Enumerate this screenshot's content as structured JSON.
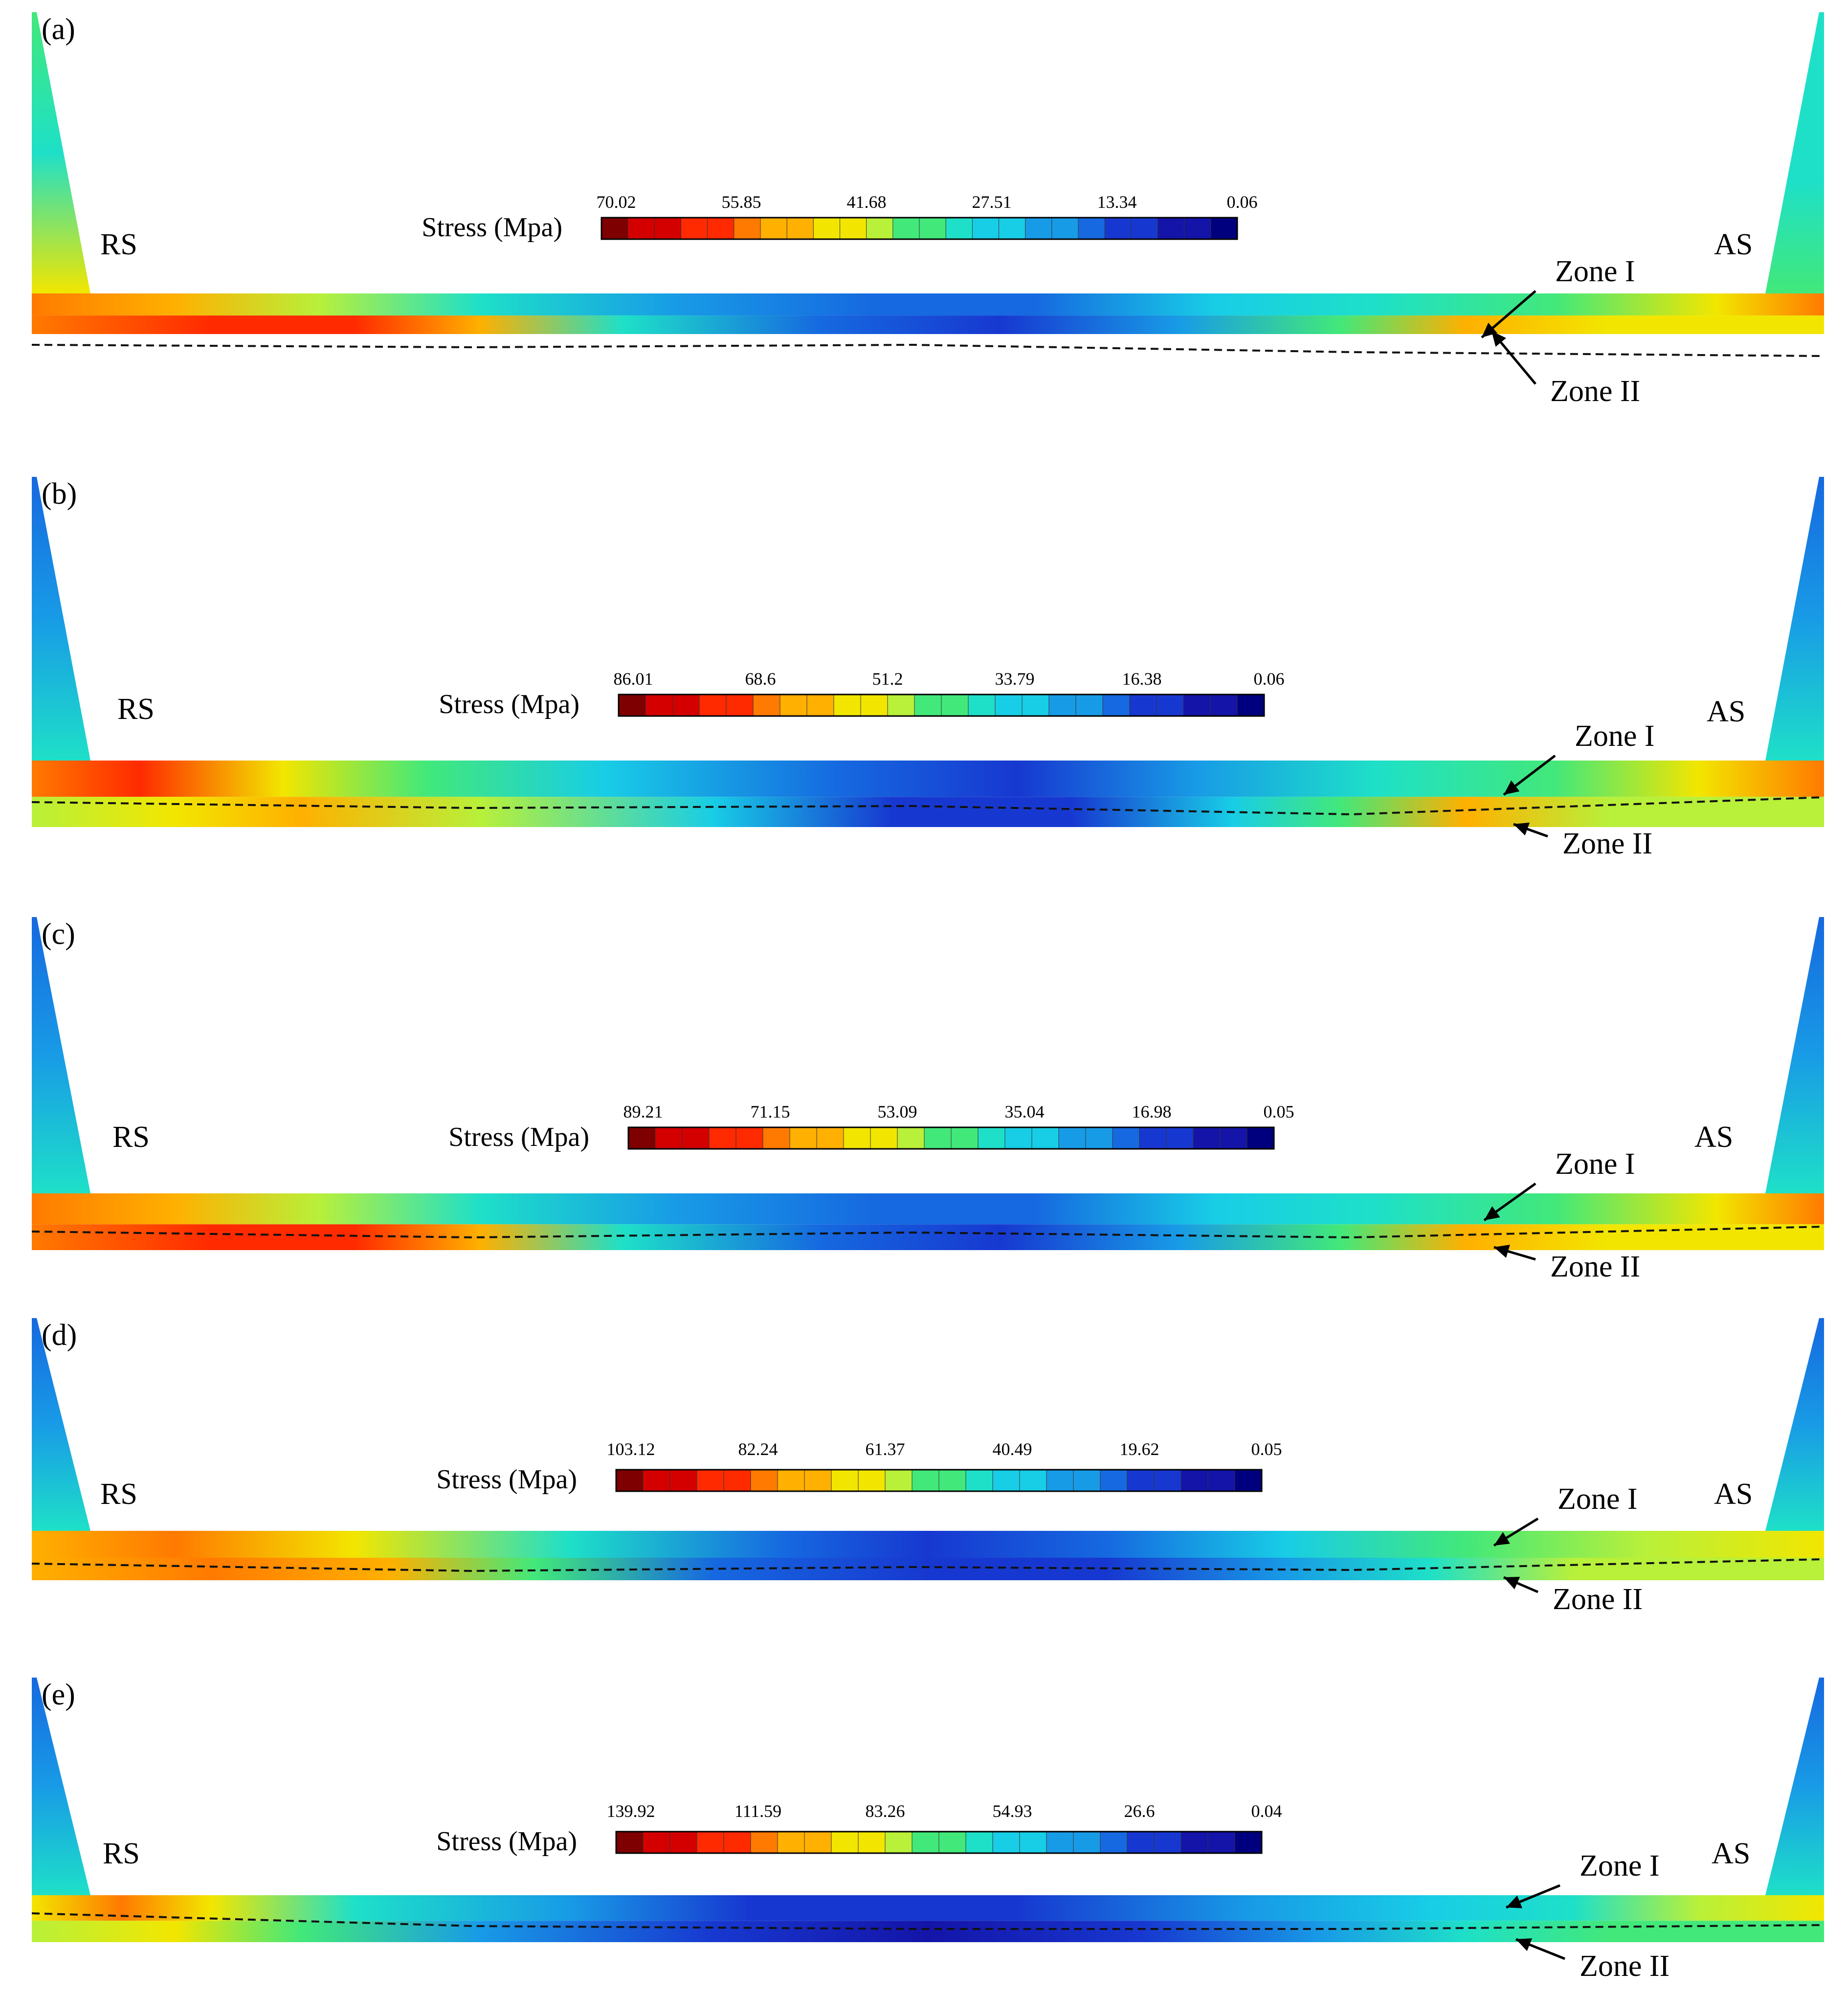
{
  "legend_title": "Stress (Mpa)",
  "side_labels": {
    "retreating": "RS",
    "advancing": "AS"
  },
  "zone_labels": {
    "upper": "Zone I",
    "lower": "Zone II"
  },
  "colormap": [
    "#7f0000",
    "#d40000",
    "#ff2a00",
    "#ff7a00",
    "#ffb000",
    "#f2e600",
    "#b8f03a",
    "#42e87a",
    "#1ee0c8",
    "#18cde6",
    "#189be6",
    "#1669e0",
    "#1738d0",
    "#1414a8",
    "#00007f"
  ],
  "panels": [
    {
      "label": "(a)",
      "ticks": [
        "70.02",
        "55.85",
        "41.68",
        "27.51",
        "13.34",
        "0.06"
      ]
    },
    {
      "label": "(b)",
      "ticks": [
        "86.01",
        "68.6",
        "51.2",
        "33.79",
        "16.38",
        "0.06"
      ]
    },
    {
      "label": "(c)",
      "ticks": [
        "89.21",
        "71.15",
        "53.09",
        "35.04",
        "16.98",
        "0.05"
      ]
    },
    {
      "label": "(d)",
      "ticks": [
        "103.12",
        "82.24",
        "61.37",
        "40.49",
        "19.62",
        "0.05"
      ]
    },
    {
      "label": "(e)",
      "ticks": [
        "139.92",
        "111.59",
        "83.26",
        "54.93",
        "26.6",
        "0.04"
      ]
    }
  ]
}
